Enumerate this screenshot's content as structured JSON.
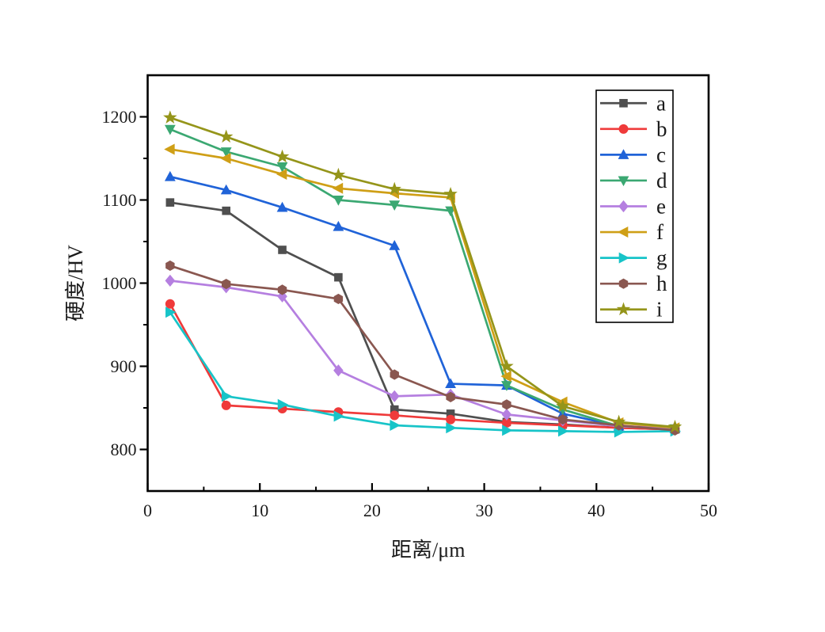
{
  "chart_data": {
    "type": "line",
    "title": "",
    "xlabel": "距离/μm",
    "ylabel": "硬度/HV",
    "xlim": [
      0,
      50
    ],
    "ylim": [
      750,
      1250
    ],
    "x_major_ticks": [
      0,
      10,
      20,
      30,
      40,
      50
    ],
    "x_minor_ticks": [
      5,
      15,
      25,
      35,
      45
    ],
    "y_major_ticks": [
      800,
      900,
      1000,
      1100,
      1200
    ],
    "y_minor_ticks": [
      850,
      950,
      1050,
      1150
    ],
    "grid": false,
    "legend_position": "top-right-inside",
    "frame_color": "#000000",
    "x": [
      2,
      7,
      12,
      17,
      22,
      27,
      32,
      37,
      42,
      47
    ],
    "series": [
      {
        "name": "a",
        "marker": "square",
        "color": "#4f4f4f",
        "values": [
          1097,
          1087,
          1040,
          1007,
          848,
          843,
          833,
          830,
          826,
          824
        ]
      },
      {
        "name": "b",
        "marker": "circle",
        "color": "#ef3a3a",
        "values": [
          975,
          853,
          849,
          845,
          841,
          836,
          832,
          829,
          826,
          824
        ]
      },
      {
        "name": "c",
        "marker": "triangle-up",
        "color": "#2063d8",
        "values": [
          1128,
          1112,
          1091,
          1068,
          1045,
          879,
          877,
          843,
          828,
          825
        ]
      },
      {
        "name": "d",
        "marker": "triangle-down",
        "color": "#3ba872",
        "values": [
          1185,
          1158,
          1140,
          1100,
          1094,
          1087,
          877,
          848,
          828,
          825
        ]
      },
      {
        "name": "e",
        "marker": "diamond",
        "color": "#b57fe0",
        "values": [
          1003,
          995,
          984,
          895,
          864,
          866,
          842,
          835,
          828,
          826
        ]
      },
      {
        "name": "f",
        "marker": "triangle-left",
        "color": "#cf9f16",
        "values": [
          1161,
          1150,
          1131,
          1114,
          1108,
          1103,
          888,
          857,
          832,
          826
        ]
      },
      {
        "name": "g",
        "marker": "triangle-right",
        "color": "#17c4c8",
        "values": [
          965,
          864,
          854,
          840,
          829,
          826,
          823,
          822,
          821,
          822
        ]
      },
      {
        "name": "h",
        "marker": "hexagon",
        "color": "#8a5750",
        "values": [
          1021,
          999,
          992,
          981,
          890,
          863,
          854,
          836,
          829,
          823
        ]
      },
      {
        "name": "i",
        "marker": "star",
        "color": "#95951a",
        "values": [
          1199,
          1176,
          1152,
          1130,
          1113,
          1107,
          900,
          852,
          833,
          827
        ]
      }
    ]
  }
}
